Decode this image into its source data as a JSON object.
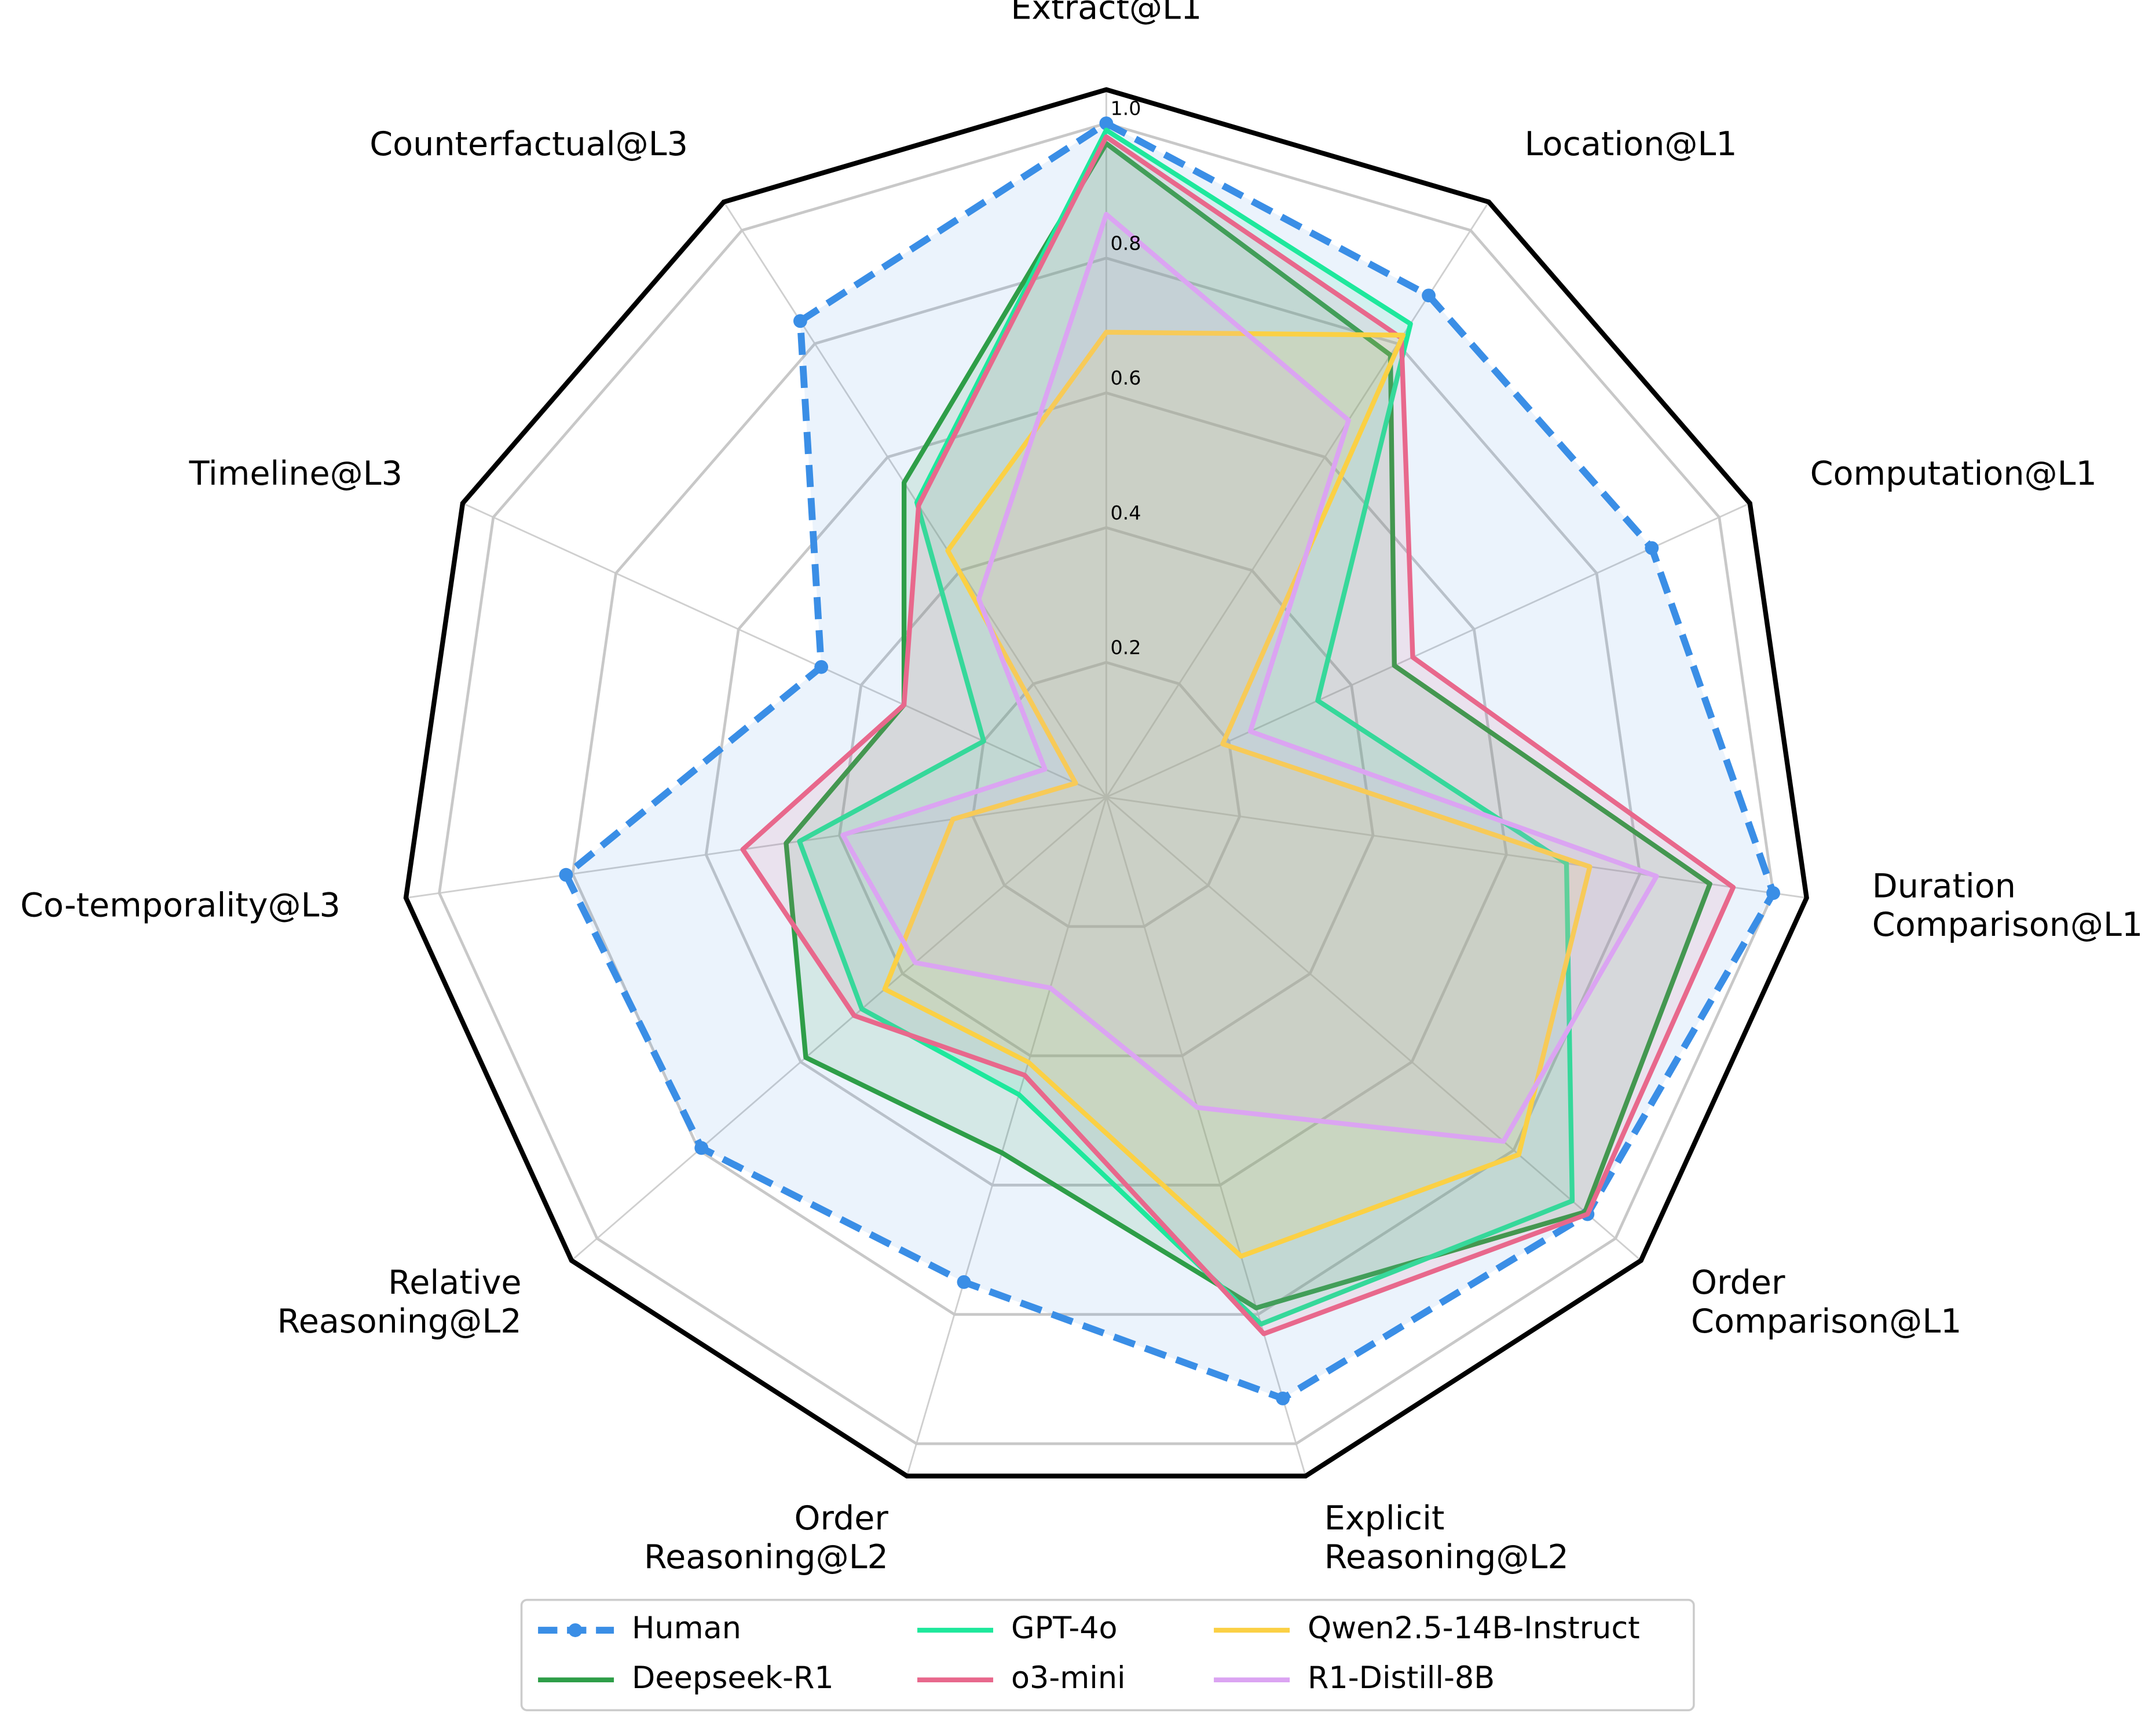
{
  "chart_data": {
    "type": "radar",
    "categories": [
      "Extract@L1",
      "Location@L1",
      "Computation@L1",
      "Duration\nComparison@L1",
      "Order\nComparison@L1",
      "Explicit\nReasoning@L2",
      "Order\nReasoning@L2",
      "Relative\nReasoning@L2",
      "Co-temporality@L3",
      "Timeline@L3",
      "Counterfactual@L3"
    ],
    "ylim": [
      0,
      1.05
    ],
    "yticks": [
      0.2,
      0.4,
      0.6,
      0.8,
      {
        "value": 1.0,
        "label": "1.0"
      }
    ],
    "grid": true,
    "legend_position": "bottom",
    "series": [
      {
        "name": "Human",
        "color": "#3a8ee6",
        "dashed": true,
        "markers": true,
        "values": [
          1.0,
          0.885,
          0.89,
          1.0,
          0.945,
          0.93,
          0.75,
          0.795,
          0.81,
          0.465,
          0.84
        ]
      },
      {
        "name": "Deepseek-R1",
        "color": "#2e9e48",
        "values": [
          0.97,
          0.78,
          0.47,
          0.905,
          0.94,
          0.79,
          0.55,
          0.59,
          0.48,
          0.33,
          0.555
        ]
      },
      {
        "name": "GPT-4o",
        "color": "#1ee89c",
        "values": [
          0.99,
          0.835,
          0.345,
          0.69,
          0.915,
          0.815,
          0.46,
          0.48,
          0.46,
          0.2,
          0.52
        ]
      },
      {
        "name": "o3-mini",
        "color": "#e8688c",
        "values": [
          0.98,
          0.81,
          0.5,
          0.94,
          0.945,
          0.83,
          0.43,
          0.495,
          0.545,
          0.33,
          0.515
        ]
      },
      {
        "name": "Qwen2.5-14B-Instruct",
        "color": "#fbd044",
        "values": [
          0.69,
          0.815,
          0.19,
          0.725,
          0.81,
          0.71,
          0.41,
          0.435,
          0.23,
          0.05,
          0.435
        ]
      },
      {
        "name": "R1-Distill-8B",
        "color": "#dba4f2",
        "values": [
          0.865,
          0.665,
          0.235,
          0.825,
          0.78,
          0.48,
          0.295,
          0.375,
          0.395,
          0.1,
          0.35
        ]
      }
    ]
  }
}
